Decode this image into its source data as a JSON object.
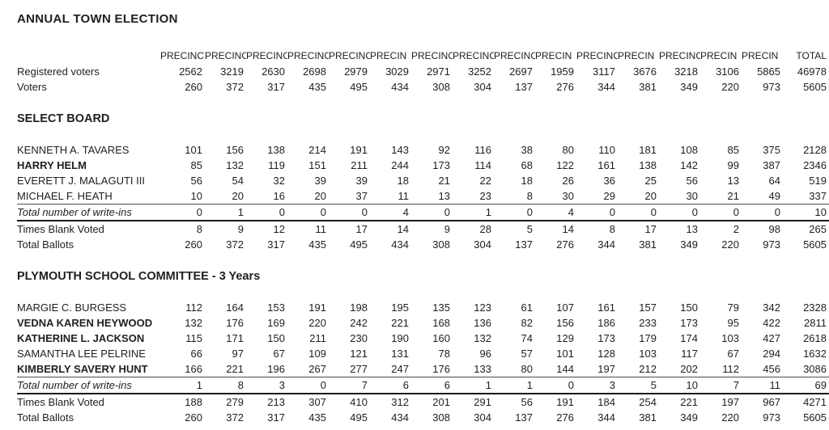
{
  "title": "ANNUAL TOWN ELECTION",
  "table": {
    "header_labels": [
      "PRECINCT",
      "PRECINC",
      "PRECINC",
      "PRECINC",
      "PRECINC",
      "PRECIN",
      "PRECINC",
      "PRECINC",
      "PRECINC",
      "PRECIN",
      "PRECINC",
      "PRECIN",
      "PRECINC",
      "PRECIN",
      "PRECIN",
      "TOTAL"
    ],
    "summary_rows": [
      {
        "label": "Registered voters",
        "style": "normal",
        "values": [
          2562,
          3219,
          2630,
          2698,
          2979,
          3029,
          2971,
          3252,
          2697,
          1959,
          3117,
          3676,
          3218,
          3106,
          5865,
          46978
        ]
      },
      {
        "label": "Voters",
        "style": "normal",
        "values": [
          260,
          372,
          317,
          435,
          495,
          434,
          308,
          304,
          137,
          276,
          344,
          381,
          349,
          220,
          973,
          5605
        ]
      }
    ],
    "sections": [
      {
        "heading": "SELECT BOARD",
        "rows": [
          {
            "label": "KENNETH A. TAVARES",
            "style": "normal",
            "values": [
              101,
              156,
              138,
              214,
              191,
              143,
              92,
              116,
              38,
              80,
              110,
              181,
              108,
              85,
              375,
              2128
            ]
          },
          {
            "label": "HARRY HELM",
            "style": "bold",
            "values": [
              85,
              132,
              119,
              151,
              211,
              244,
              173,
              114,
              68,
              122,
              161,
              138,
              142,
              99,
              387,
              2346
            ]
          },
          {
            "label": "EVERETT J. MALAGUTI III",
            "style": "normal",
            "values": [
              56,
              54,
              32,
              39,
              39,
              18,
              21,
              22,
              18,
              26,
              36,
              25,
              56,
              13,
              64,
              519
            ]
          },
          {
            "label": "MICHAEL F. HEATH",
            "style": "normal",
            "values": [
              10,
              20,
              16,
              20,
              37,
              11,
              13,
              23,
              8,
              30,
              29,
              20,
              30,
              21,
              49,
              337
            ]
          },
          {
            "label": "Total number of write-ins",
            "style": "writeins",
            "values": [
              0,
              1,
              0,
              0,
              0,
              4,
              0,
              1,
              0,
              4,
              0,
              0,
              0,
              0,
              0,
              10
            ]
          },
          {
            "label": "Times Blank Voted",
            "style": "normal",
            "values": [
              8,
              9,
              12,
              11,
              17,
              14,
              9,
              28,
              5,
              14,
              8,
              17,
              13,
              2,
              98,
              265
            ]
          },
          {
            "label": "Total Ballots",
            "style": "normal",
            "values": [
              260,
              372,
              317,
              435,
              495,
              434,
              308,
              304,
              137,
              276,
              344,
              381,
              349,
              220,
              973,
              5605
            ]
          }
        ]
      },
      {
        "heading": "PLYMOUTH SCHOOL COMMITTEE - 3 Years",
        "rows": [
          {
            "label": "MARGIE C. BURGESS",
            "style": "normal",
            "values": [
              112,
              164,
              153,
              191,
              198,
              195,
              135,
              123,
              61,
              107,
              161,
              157,
              150,
              79,
              342,
              2328
            ]
          },
          {
            "label": "VEDNA KAREN HEYWOOD",
            "style": "bold",
            "values": [
              132,
              176,
              169,
              220,
              242,
              221,
              168,
              136,
              82,
              156,
              186,
              233,
              173,
              95,
              422,
              2811
            ]
          },
          {
            "label": "KATHERINE L. JACKSON",
            "style": "bold",
            "values": [
              115,
              171,
              150,
              211,
              230,
              190,
              160,
              132,
              74,
              129,
              173,
              179,
              174,
              103,
              427,
              2618
            ]
          },
          {
            "label": "SAMANTHA LEE PELRINE",
            "style": "normal",
            "values": [
              66,
              97,
              67,
              109,
              121,
              131,
              78,
              96,
              57,
              101,
              128,
              103,
              117,
              67,
              294,
              1632
            ]
          },
          {
            "label": "KIMBERLY SAVERY HUNT",
            "style": "bold",
            "values": [
              166,
              221,
              196,
              267,
              277,
              247,
              176,
              133,
              80,
              144,
              197,
              212,
              202,
              112,
              456,
              3086
            ]
          },
          {
            "label": "Total number of write-ins",
            "style": "writeins",
            "values": [
              1,
              8,
              3,
              0,
              7,
              6,
              6,
              1,
              1,
              0,
              3,
              5,
              10,
              7,
              11,
              69
            ]
          },
          {
            "label": "Times Blank Voted",
            "style": "normal",
            "values": [
              188,
              279,
              213,
              307,
              410,
              312,
              201,
              291,
              56,
              191,
              184,
              254,
              221,
              197,
              967,
              4271
            ]
          },
          {
            "label": "Total Ballots",
            "style": "normal",
            "values": [
              260,
              372,
              317,
              435,
              495,
              434,
              308,
              304,
              137,
              276,
              344,
              381,
              349,
              220,
              973,
              5605
            ]
          }
        ]
      }
    ]
  }
}
